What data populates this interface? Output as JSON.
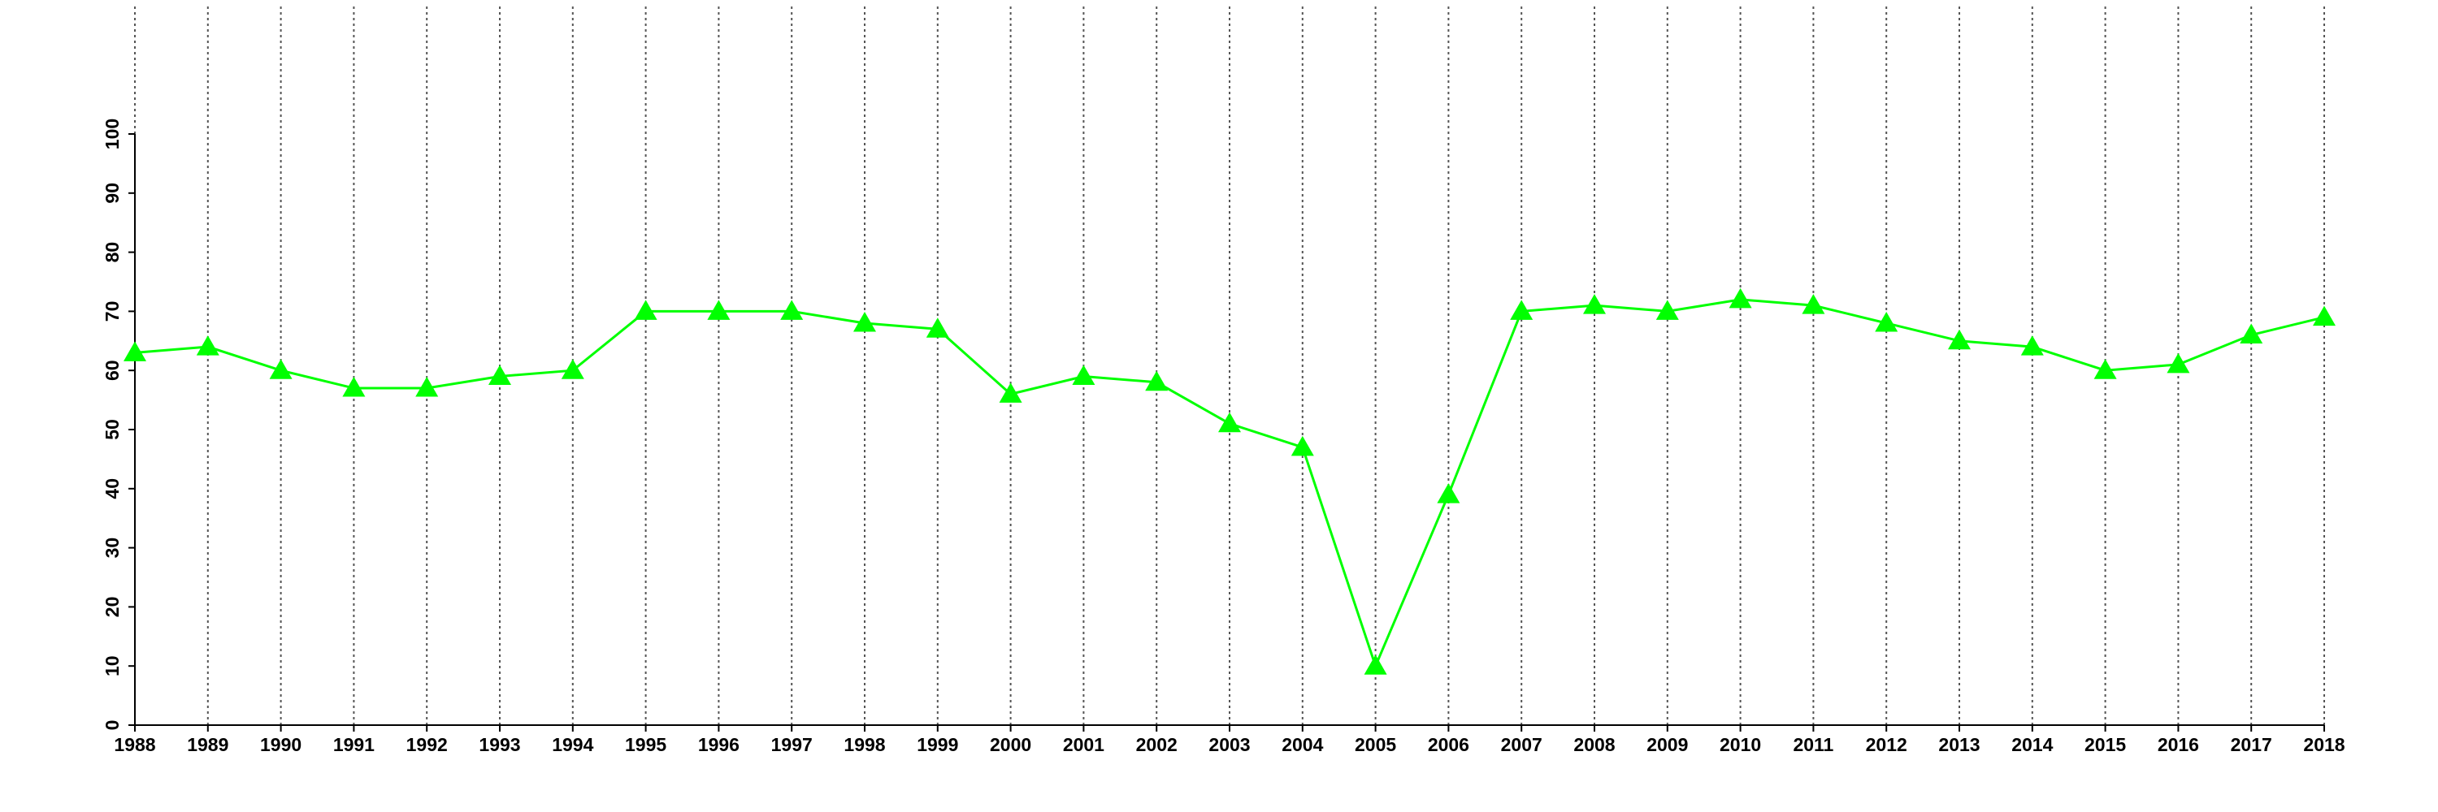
{
  "chart_data": {
    "type": "line",
    "categories": [
      "1988",
      "1989",
      "1990",
      "1991",
      "1992",
      "1993",
      "1994",
      "1995",
      "1996",
      "1997",
      "1998",
      "1999",
      "2000",
      "2001",
      "2002",
      "2003",
      "2004",
      "2005",
      "2006",
      "2007",
      "2008",
      "2009",
      "2010",
      "2011",
      "2012",
      "2013",
      "2014",
      "2015",
      "2016",
      "2017",
      "2018"
    ],
    "series": [
      {
        "color": "#00ff00",
        "marker": "triangle",
        "values": [
          63,
          64,
          60,
          57,
          57,
          59,
          60,
          70,
          70,
          70,
          68,
          67,
          56,
          59,
          58,
          51,
          47,
          10,
          39,
          70,
          71,
          70,
          72,
          71,
          68,
          65,
          64,
          60,
          61,
          66,
          69
        ]
      }
    ],
    "ylim": [
      0,
      100
    ],
    "yticks": [
      0,
      10,
      20,
      30,
      40,
      50,
      60,
      70,
      80,
      90,
      100
    ],
    "grid": true
  }
}
